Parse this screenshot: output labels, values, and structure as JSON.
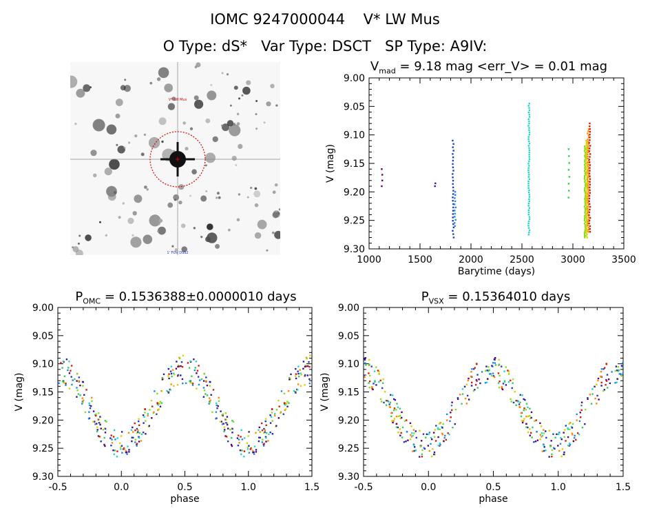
{
  "header": {
    "title": "IOMC 9247000044    V* LW Mus",
    "types": "O Type: dS*   Var Type: DSCT   SP Type: A9IV:"
  },
  "finder_chart": {
    "label_top": "V* LW Mus",
    "label_bottom": "1' FOV DSS2",
    "circle_color": "#dd0000"
  },
  "panels": {
    "timeseries": {
      "title_main": "V",
      "title_sub": "mad",
      "title_rest": " = 9.18 mag <err_V> = 0.01 mag"
    },
    "phase_omc": {
      "title_main": "P",
      "title_sub": "OMC",
      "title_rest": " = 0.1536388±0.0000010 days"
    },
    "phase_vsx": {
      "title_main": "P",
      "title_sub": "VSX",
      "title_rest": " = 0.15364010 days"
    }
  },
  "chart_data": [
    {
      "type": "scatter",
      "panel": "timeseries",
      "xlabel": "Barytime (days)",
      "ylabel": "V (mag)",
      "xlim": [
        1000,
        3500
      ],
      "ylim": [
        9.3,
        9.0
      ],
      "xticks": [
        "1000",
        "1500",
        "2000",
        "2500",
        "3000",
        "3500"
      ],
      "yticks": [
        "9.00",
        "9.05",
        "9.10",
        "9.15",
        "9.20",
        "9.25",
        "9.30"
      ],
      "mean_mag": 9.18,
      "clusters": [
        {
          "x": 1130,
          "ymin": 9.16,
          "ymax": 9.19,
          "n": 4,
          "color": "#5a0070"
        },
        {
          "x": 1650,
          "ymin": 9.185,
          "ymax": 9.19,
          "n": 2,
          "color": "#2a1aa0"
        },
        {
          "x": 1825,
          "ymin": 9.11,
          "ymax": 9.28,
          "n": 30,
          "color": "#1f3fc0"
        },
        {
          "x": 1845,
          "ymin": 9.2,
          "ymax": 9.26,
          "n": 12,
          "color": "#1e88e5"
        },
        {
          "x": 2570,
          "ymin": 9.045,
          "ymax": 9.275,
          "n": 60,
          "color": "#20d8c8"
        },
        {
          "x": 2960,
          "ymin": 9.125,
          "ymax": 9.21,
          "n": 8,
          "color": "#33cc55"
        },
        {
          "x": 3120,
          "ymin": 9.12,
          "ymax": 9.28,
          "n": 60,
          "color": "#80e020"
        },
        {
          "x": 3135,
          "ymin": 9.11,
          "ymax": 9.28,
          "n": 60,
          "color": "#ddd000"
        },
        {
          "x": 3150,
          "ymin": 9.09,
          "ymax": 9.27,
          "n": 50,
          "color": "#ff8800"
        },
        {
          "x": 3165,
          "ymin": 9.08,
          "ymax": 9.27,
          "n": 40,
          "color": "#dd1a00"
        }
      ]
    },
    {
      "type": "scatter",
      "panel": "phase_omc",
      "xlabel": "phase",
      "ylabel": "V (mag)",
      "xlim": [
        -0.5,
        1.5
      ],
      "ylim": [
        9.3,
        9.0
      ],
      "xticks": [
        "-0.5",
        "0.0",
        "0.5",
        "1.0",
        "1.5"
      ],
      "yticks": [
        "9.00",
        "9.05",
        "9.10",
        "9.15",
        "9.20",
        "9.25",
        "9.30"
      ],
      "period_days": 0.1536388,
      "max_phase": 0.5,
      "min_phase": 0.0,
      "mag_bright": 9.11,
      "mag_faint": 9.245
    },
    {
      "type": "scatter",
      "panel": "phase_vsx",
      "xlabel": "phase",
      "ylabel": "V (mag)",
      "xlim": [
        -0.5,
        1.5
      ],
      "ylim": [
        9.3,
        9.0
      ],
      "xticks": [
        "-0.5",
        "0.0",
        "0.5",
        "1.0",
        "1.5"
      ],
      "yticks": [
        "9.00",
        "9.05",
        "9.10",
        "9.15",
        "9.20",
        "9.25",
        "9.30"
      ],
      "period_days": 0.1536401,
      "max_phase": 0.47,
      "min_phase": -0.03,
      "mag_bright": 9.11,
      "mag_faint": 9.245
    }
  ],
  "palette": [
    "#5a0070",
    "#2a1aa0",
    "#1f3fc0",
    "#1e88e5",
    "#20d8c8",
    "#33cc55",
    "#80e020",
    "#ddd000",
    "#ff8800",
    "#dd1a00"
  ]
}
